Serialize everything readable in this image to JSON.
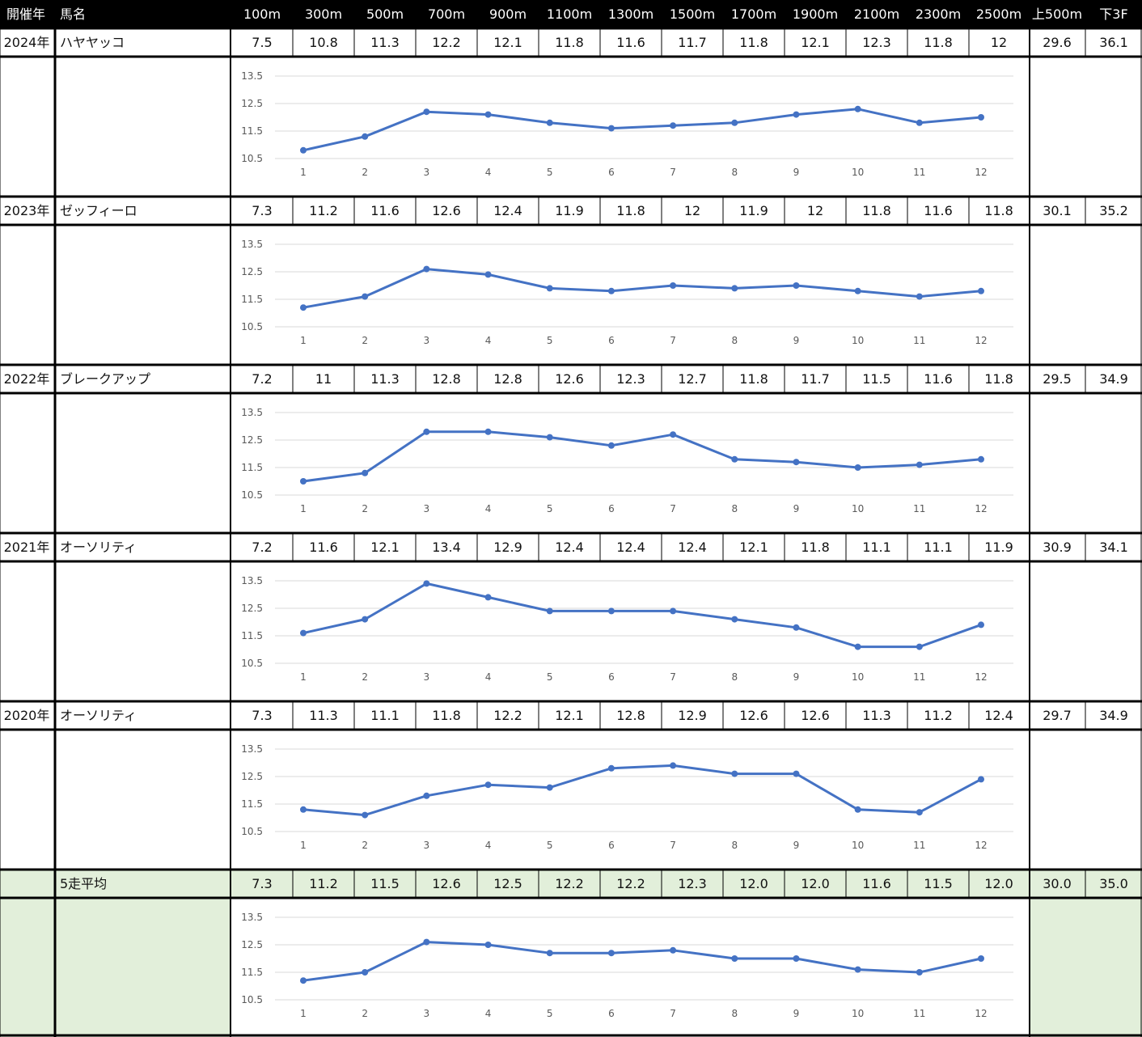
{
  "table": {
    "header": {
      "year": "開催年",
      "horse": "馬名",
      "splits": [
        "100m",
        "300m",
        "500m",
        "700m",
        "900m",
        "1100m",
        "1300m",
        "1500m",
        "1700m",
        "1900m",
        "2100m",
        "2300m",
        "2500m"
      ],
      "first500": "上500m",
      "last3f": "下3F"
    },
    "rows": [
      {
        "year": "2024年",
        "horse": "ハヤヤッコ",
        "values": [
          "7.5",
          "10.8",
          "11.3",
          "12.2",
          "12.1",
          "11.8",
          "11.6",
          "11.7",
          "11.8",
          "12.1",
          "12.3",
          "11.8",
          "12"
        ],
        "first500": "29.6",
        "last3f": "36.1"
      },
      {
        "year": "2023年",
        "horse": "ゼッフィーロ",
        "values": [
          "7.3",
          "11.2",
          "11.6",
          "12.6",
          "12.4",
          "11.9",
          "11.8",
          "12",
          "11.9",
          "12",
          "11.8",
          "11.6",
          "11.8"
        ],
        "first500": "30.1",
        "last3f": "35.2"
      },
      {
        "year": "2022年",
        "horse": "ブレークアップ",
        "values": [
          "7.2",
          "11",
          "11.3",
          "12.8",
          "12.8",
          "12.6",
          "12.3",
          "12.7",
          "11.8",
          "11.7",
          "11.5",
          "11.6",
          "11.8"
        ],
        "first500": "29.5",
        "last3f": "34.9"
      },
      {
        "year": "2021年",
        "horse": "オーソリティ",
        "values": [
          "7.2",
          "11.6",
          "12.1",
          "13.4",
          "12.9",
          "12.4",
          "12.4",
          "12.4",
          "12.1",
          "11.8",
          "11.1",
          "11.1",
          "11.9"
        ],
        "first500": "30.9",
        "last3f": "34.1"
      },
      {
        "year": "2020年",
        "horse": "オーソリティ",
        "values": [
          "7.3",
          "11.3",
          "11.1",
          "11.8",
          "12.2",
          "12.1",
          "12.8",
          "12.9",
          "12.6",
          "12.6",
          "11.3",
          "11.2",
          "12.4"
        ],
        "first500": "29.7",
        "last3f": "34.9"
      },
      {
        "year": "",
        "horse": "5走平均",
        "values": [
          "7.3",
          "11.2",
          "11.5",
          "12.6",
          "12.5",
          "12.2",
          "12.2",
          "12.3",
          "12.0",
          "12.0",
          "11.6",
          "11.5",
          "12.0"
        ],
        "first500": "30.0",
        "last3f": "35.0"
      }
    ]
  },
  "colors": {
    "line": "#4472c4",
    "grid": "#d9d9d9",
    "avg_bg": "#e2efda",
    "header_bg": "#000000"
  },
  "chart_data": [
    {
      "type": "line",
      "x": [
        1,
        2,
        3,
        4,
        5,
        6,
        7,
        8,
        9,
        10,
        11,
        12
      ],
      "y_ticks": [
        10.5,
        11.5,
        12.5,
        13.5
      ],
      "ylim": [
        10.5,
        13.5
      ],
      "grid": true,
      "series": [
        {
          "values": [
            10.8,
            11.3,
            12.2,
            12.1,
            11.8,
            11.6,
            11.7,
            11.8,
            12.1,
            12.3,
            11.8,
            12
          ]
        }
      ]
    },
    {
      "type": "line",
      "x": [
        1,
        2,
        3,
        4,
        5,
        6,
        7,
        8,
        9,
        10,
        11,
        12
      ],
      "y_ticks": [
        10.5,
        11.5,
        12.5,
        13.5
      ],
      "ylim": [
        10.5,
        13.5
      ],
      "grid": true,
      "series": [
        {
          "values": [
            11.2,
            11.6,
            12.6,
            12.4,
            11.9,
            11.8,
            12,
            11.9,
            12,
            11.8,
            11.6,
            11.8
          ]
        }
      ]
    },
    {
      "type": "line",
      "x": [
        1,
        2,
        3,
        4,
        5,
        6,
        7,
        8,
        9,
        10,
        11,
        12
      ],
      "y_ticks": [
        10.5,
        11.5,
        12.5,
        13.5
      ],
      "ylim": [
        10.5,
        13.5
      ],
      "grid": true,
      "series": [
        {
          "values": [
            11,
            11.3,
            12.8,
            12.8,
            12.6,
            12.3,
            12.7,
            11.8,
            11.7,
            11.5,
            11.6,
            11.8
          ]
        }
      ]
    },
    {
      "type": "line",
      "x": [
        1,
        2,
        3,
        4,
        5,
        6,
        7,
        8,
        9,
        10,
        11,
        12
      ],
      "y_ticks": [
        10.5,
        11.5,
        12.5,
        13.5
      ],
      "ylim": [
        10.5,
        13.5
      ],
      "grid": true,
      "series": [
        {
          "values": [
            11.6,
            12.1,
            13.4,
            12.9,
            12.4,
            12.4,
            12.4,
            12.1,
            11.8,
            11.1,
            11.1,
            11.9
          ]
        }
      ]
    },
    {
      "type": "line",
      "x": [
        1,
        2,
        3,
        4,
        5,
        6,
        7,
        8,
        9,
        10,
        11,
        12
      ],
      "y_ticks": [
        10.5,
        11.5,
        12.5,
        13.5
      ],
      "ylim": [
        10.5,
        13.5
      ],
      "grid": true,
      "series": [
        {
          "values": [
            11.3,
            11.1,
            11.8,
            12.2,
            12.1,
            12.8,
            12.9,
            12.6,
            12.6,
            11.3,
            11.2,
            12.4
          ]
        }
      ]
    },
    {
      "type": "line",
      "x": [
        1,
        2,
        3,
        4,
        5,
        6,
        7,
        8,
        9,
        10,
        11,
        12
      ],
      "y_ticks": [
        10.5,
        11.5,
        12.5,
        13.5
      ],
      "ylim": [
        10.5,
        13.5
      ],
      "grid": true,
      "series": [
        {
          "values": [
            11.2,
            11.5,
            12.6,
            12.5,
            12.2,
            12.2,
            12.3,
            12.0,
            12.0,
            11.6,
            11.5,
            12.0
          ]
        }
      ]
    }
  ]
}
